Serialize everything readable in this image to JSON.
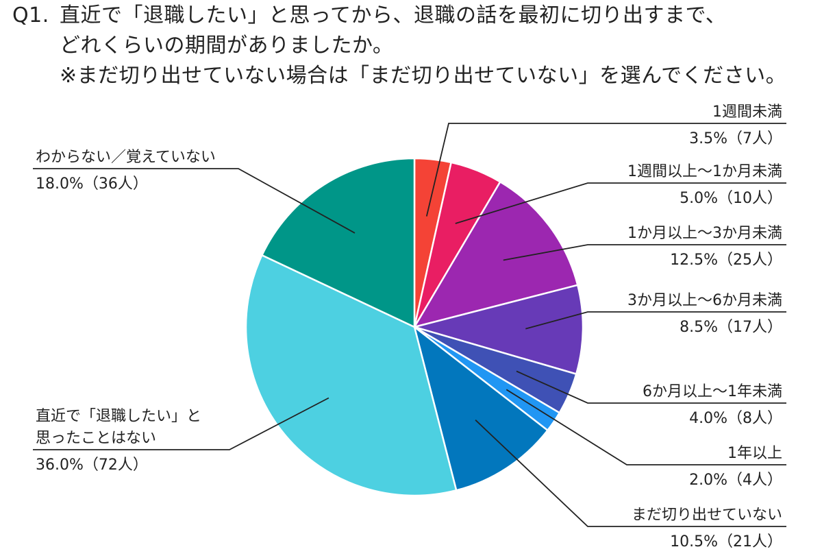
{
  "question": {
    "number": "Q1.",
    "line1": "直近で「退職したい」と思ってから、退職の話を最初に切り出すまで、",
    "line2": "どれくらいの期間がありましたか。",
    "line3": "※まだ切り出せていない場合は「まだ切り出せていない」を選んでください。"
  },
  "chart_data": {
    "type": "pie",
    "start_angle": "12 o'clock",
    "direction": "clockwise",
    "slices": [
      {
        "label": "1週間未満",
        "value": 3.5,
        "value_label": "3.5%（7人）",
        "color": "#f44336"
      },
      {
        "label": "1週間以上〜1か月未満",
        "value": 5.0,
        "value_label": "5.0%（10人）",
        "color": "#e91e63"
      },
      {
        "label": "1か月以上〜3か月未満",
        "value": 12.5,
        "value_label": "12.5%（25人）",
        "color": "#9c27b0"
      },
      {
        "label": "3か月以上〜6か月未満",
        "value": 8.5,
        "value_label": "8.5%（17人）",
        "color": "#673ab7"
      },
      {
        "label": "6か月以上〜1年未満",
        "value": 4.0,
        "value_label": "4.0%（8人）",
        "color": "#3f51b5"
      },
      {
        "label": "1年以上",
        "value": 2.0,
        "value_label": "2.0%（4人）",
        "color": "#2196f3"
      },
      {
        "label": "まだ切り出せていない",
        "value": 10.5,
        "value_label": "10.5%（21人）",
        "color": "#0277bd"
      },
      {
        "label": "直近で「退職したい」と思ったことはない",
        "label_lines": [
          "直近で「退職したい」と",
          "思ったことはない"
        ],
        "value": 36.0,
        "value_label": "36.0%（72人）",
        "color": "#4dd0e1"
      },
      {
        "label": "わからない／覚えていない",
        "value": 18.0,
        "value_label": "18.0%（36人）",
        "color": "#009688"
      }
    ]
  }
}
